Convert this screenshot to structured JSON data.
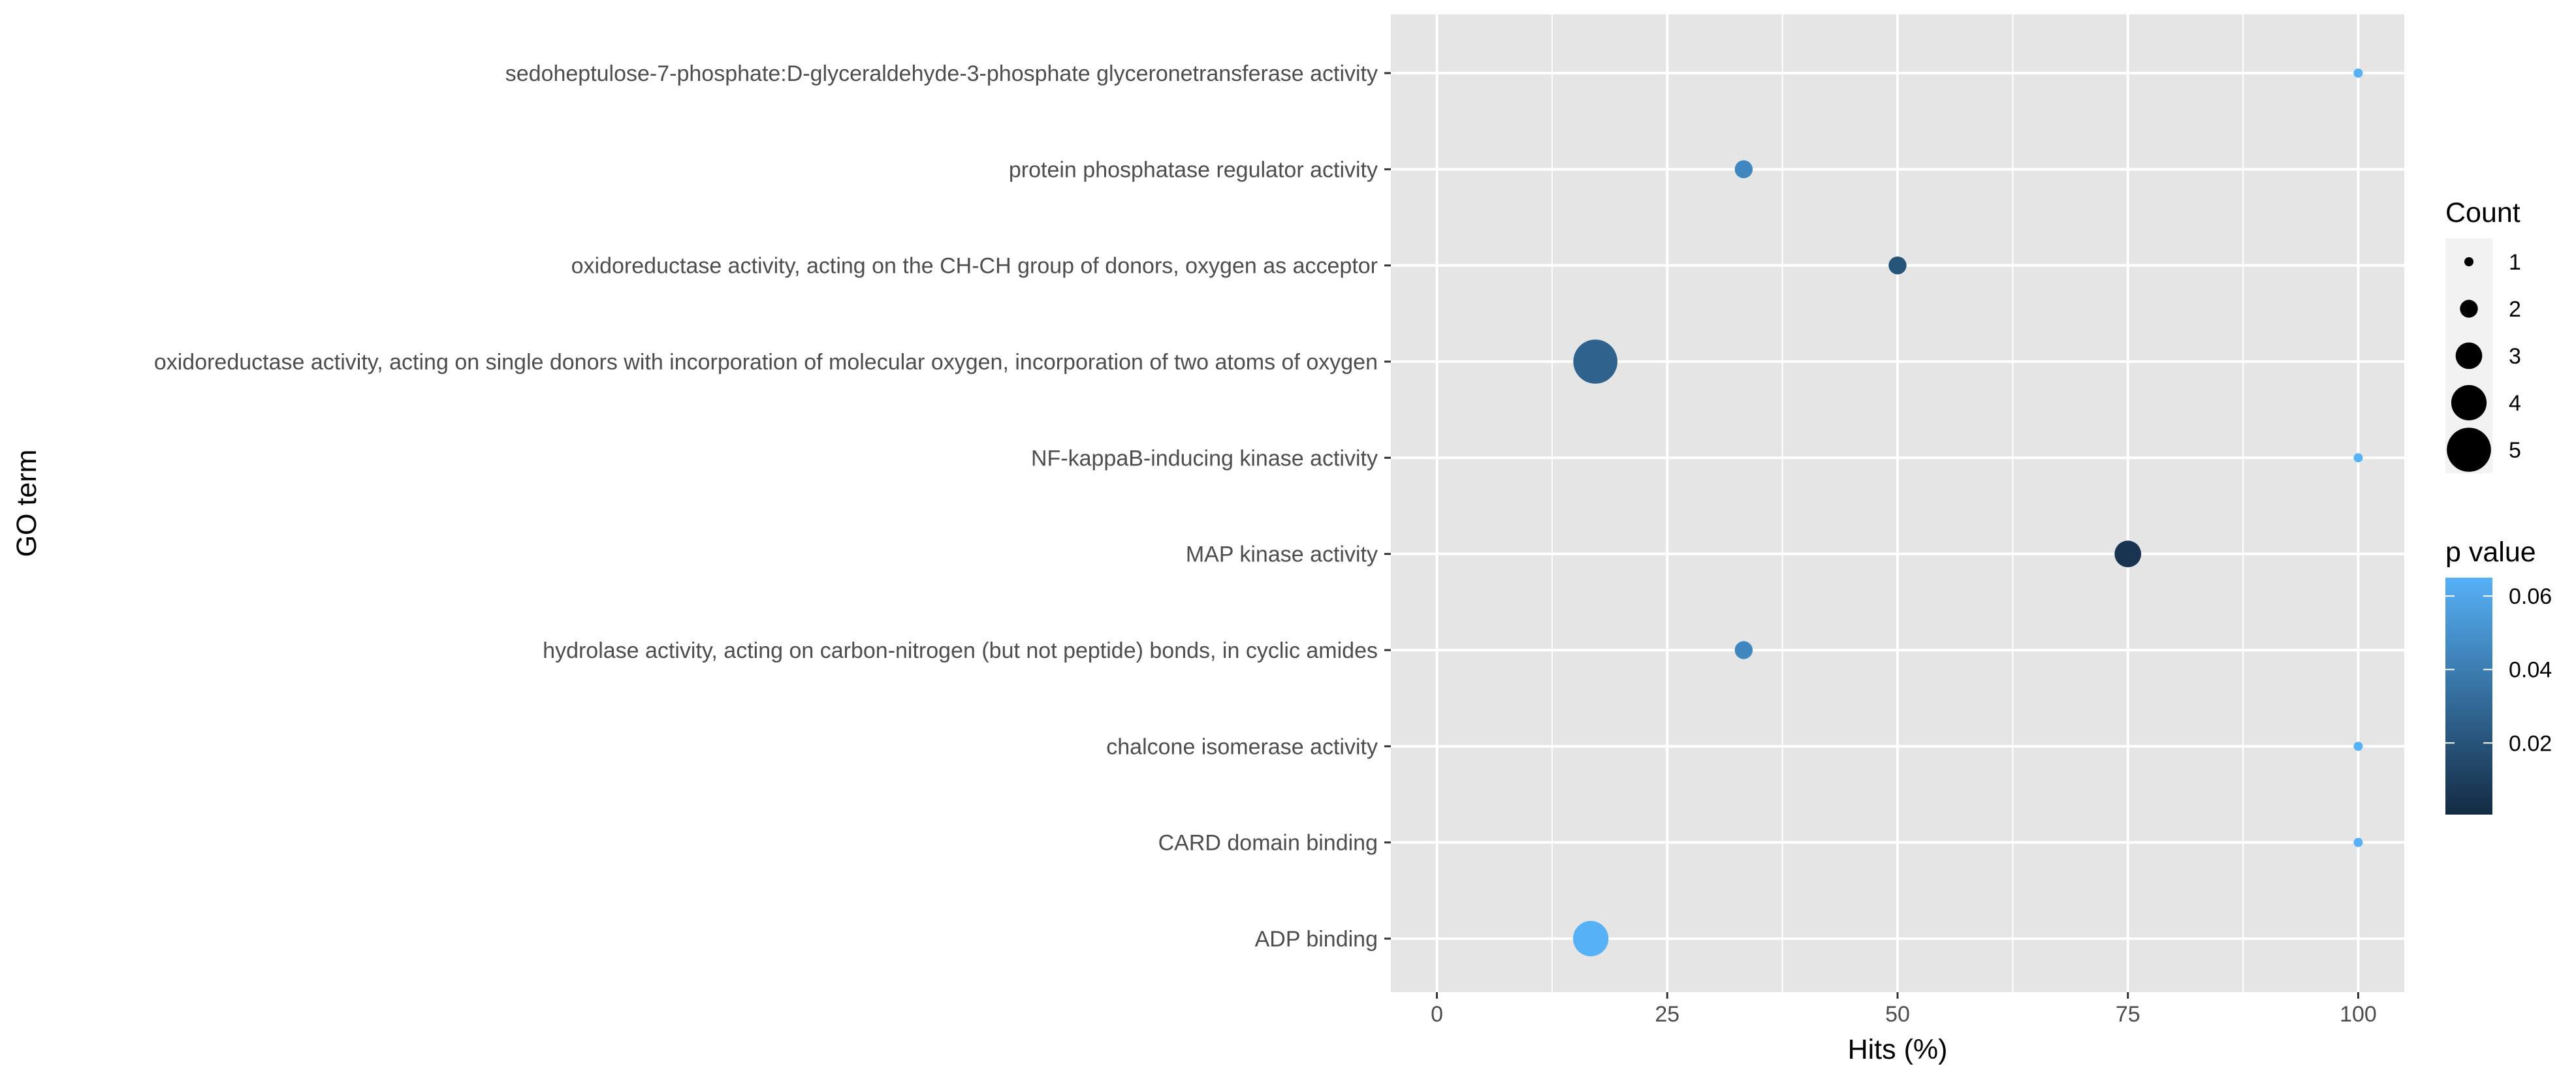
{
  "chart_data": {
    "type": "scatter",
    "title": "",
    "xlabel": "Hits (%)",
    "ylabel": "GO term",
    "xlim": [
      -5,
      105
    ],
    "x_ticks": [
      0,
      25,
      50,
      75,
      100
    ],
    "grid": true,
    "categories": [
      "sedoheptulose-7-phosphate:D-glyceraldehyde-3-phosphate glyceronetransferase activity",
      "protein phosphatase regulator activity",
      "oxidoreductase activity, acting on the CH-CH group of donors, oxygen as acceptor",
      "oxidoreductase activity, acting on single donors with incorporation of molecular oxygen, incorporation of two atoms of oxygen",
      "NF-kappaB-inducing kinase activity",
      "MAP kinase activity",
      "hydrolase activity, acting on carbon-nitrogen (but not peptide) bonds, in cyclic amides",
      "chalcone isomerase activity",
      "CARD domain binding",
      "ADP binding"
    ],
    "points": [
      {
        "term": "sedoheptulose-7-phosphate:D-glyceraldehyde-3-phosphate glyceronetransferase activity",
        "hits": 100,
        "count": 1,
        "p_value": 0.065
      },
      {
        "term": "protein phosphatase regulator activity",
        "hits": 33.3,
        "count": 2,
        "p_value": 0.045
      },
      {
        "term": "oxidoreductase activity, acting on the CH-CH group of donors, oxygen as acceptor",
        "hits": 50,
        "count": 2,
        "p_value": 0.02
      },
      {
        "term": "oxidoreductase activity, acting on single donors with incorporation of molecular oxygen, incorporation of two atoms of oxygen",
        "hits": 17.2,
        "count": 5,
        "p_value": 0.027
      },
      {
        "term": "NF-kappaB-inducing kinase activity",
        "hits": 100,
        "count": 1,
        "p_value": 0.065
      },
      {
        "term": "MAP kinase activity",
        "hits": 75,
        "count": 3,
        "p_value": 0.005
      },
      {
        "term": "hydrolase activity, acting on carbon-nitrogen (but not peptide) bonds, in cyclic amides",
        "hits": 33.3,
        "count": 2,
        "p_value": 0.045
      },
      {
        "term": "chalcone isomerase activity",
        "hits": 100,
        "count": 1,
        "p_value": 0.065
      },
      {
        "term": "CARD domain binding",
        "hits": 100,
        "count": 1,
        "p_value": 0.065
      },
      {
        "term": "ADP binding",
        "hits": 16.7,
        "count": 4,
        "p_value": 0.065
      }
    ],
    "legend": {
      "placement": "right",
      "size": {
        "title": "Count",
        "values": [
          1,
          2,
          3,
          4,
          5
        ]
      },
      "color": {
        "title": "p value",
        "ticks": [
          0.02,
          0.04,
          0.06
        ],
        "range": [
          0.0005,
          0.065
        ],
        "low_color": "#132B43",
        "high_color": "#56B1F7"
      }
    },
    "colors": {
      "panel_bg": "#E5E5E5",
      "grid": "#FFFFFF",
      "tick_text": "#4D4D4D"
    }
  }
}
